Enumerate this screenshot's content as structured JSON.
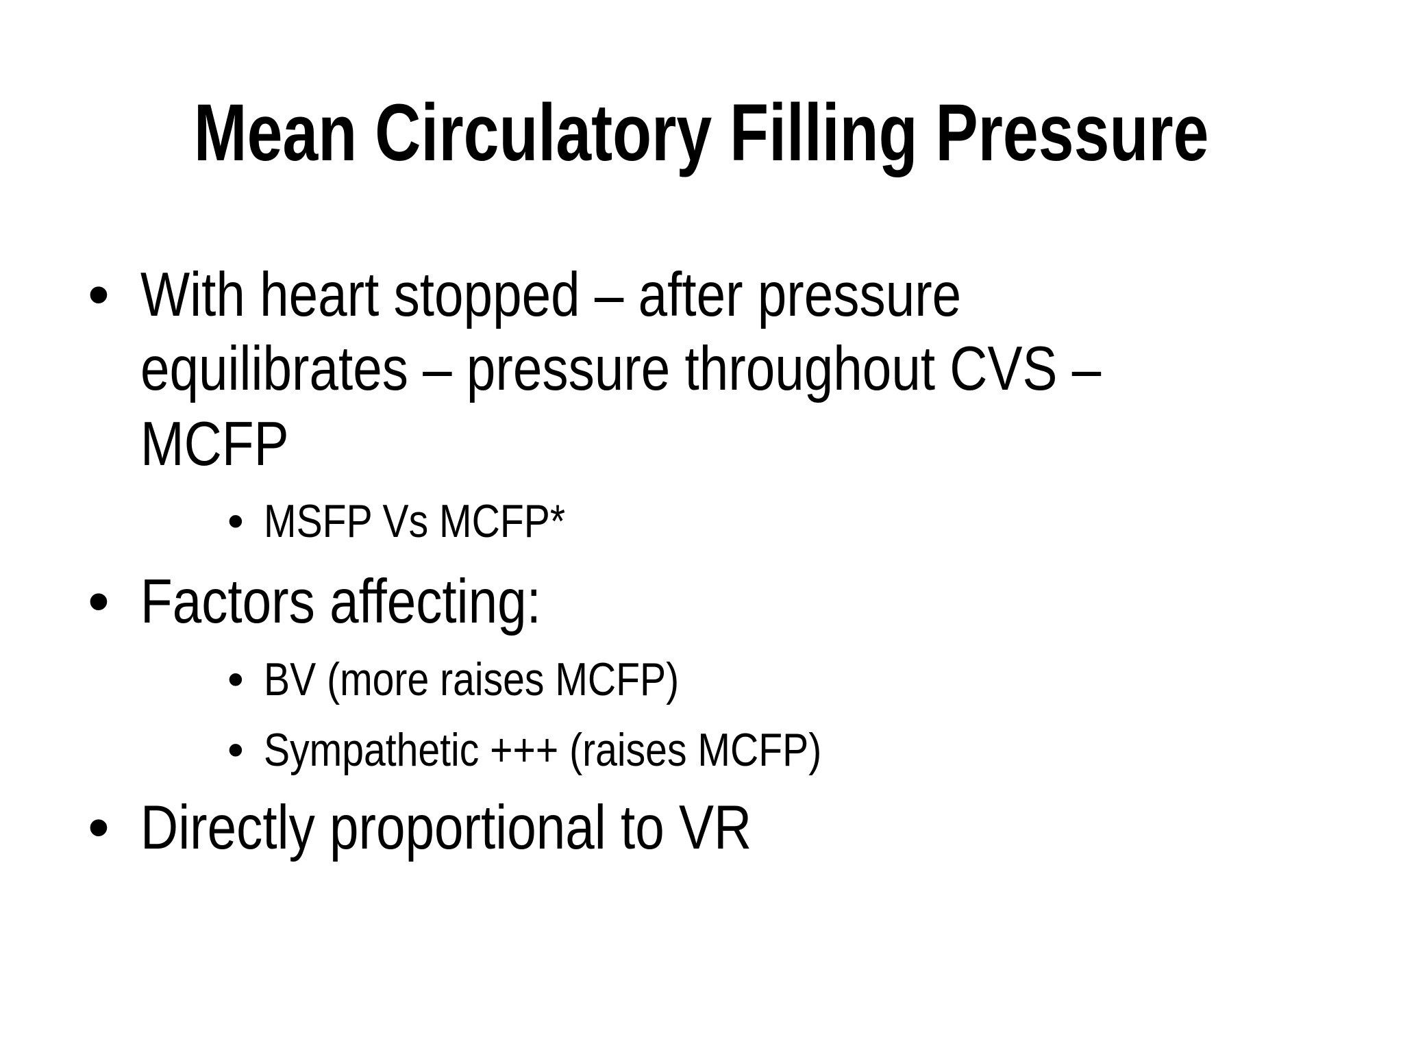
{
  "slide": {
    "title": "Mean Circulatory Filling Pressure",
    "bullets": [
      {
        "lines": [
          "With heart stopped – after pressure",
          "equilibrates – pressure throughout CVS –",
          "MCFP"
        ],
        "sub": [
          "MSFP Vs MCFP*"
        ]
      },
      {
        "lines": [
          "Factors affecting:"
        ],
        "sub": [
          "BV (more raises MCFP)",
          "Sympathetic +++ (raises MCFP)"
        ]
      },
      {
        "lines": [
          "Directly proportional to VR"
        ],
        "sub": []
      }
    ],
    "bullet_glyph": "•"
  }
}
